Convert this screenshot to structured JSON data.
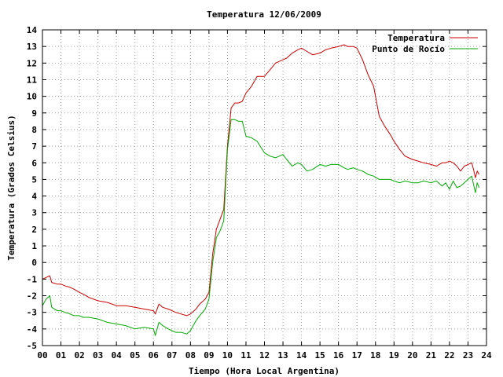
{
  "chart_data": {
    "type": "line",
    "title": "Temperatura 12/06/2009",
    "xlabel": "Tiempo (Hora Local Argentina)",
    "ylabel": "Temperatura (Grados Celsius)",
    "xlim": [
      0,
      24
    ],
    "ylim": [
      -5,
      14
    ],
    "x_ticks": [
      0,
      1,
      2,
      3,
      4,
      5,
      6,
      7,
      8,
      9,
      10,
      11,
      12,
      13,
      14,
      15,
      16,
      17,
      18,
      19,
      20,
      21,
      22,
      23,
      24
    ],
    "x_tick_labels": [
      "00",
      "01",
      "02",
      "03",
      "04",
      "05",
      "06",
      "07",
      "08",
      "09",
      "10",
      "11",
      "12",
      "13",
      "14",
      "15",
      "16",
      "17",
      "18",
      "19",
      "20",
      "21",
      "22",
      "23",
      "24"
    ],
    "y_ticks": [
      -5,
      -4,
      -3,
      -2,
      -1,
      0,
      1,
      2,
      3,
      4,
      5,
      6,
      7,
      8,
      9,
      10,
      11,
      12,
      13,
      14
    ],
    "grid": true,
    "legend_position": "top-right",
    "series": [
      {
        "name": "Temperatura",
        "color": "#cc0000",
        "x": [
          0.0,
          0.2,
          0.4,
          0.5,
          0.8,
          1.0,
          1.2,
          1.5,
          1.7,
          2.0,
          2.2,
          2.5,
          3.0,
          3.5,
          4.0,
          4.5,
          5.0,
          5.5,
          6.0,
          6.1,
          6.3,
          6.5,
          6.8,
          7.0,
          7.2,
          7.5,
          7.8,
          8.0,
          8.3,
          8.5,
          8.8,
          9.0,
          9.2,
          9.4,
          9.6,
          9.8,
          10.0,
          10.2,
          10.4,
          10.6,
          10.8,
          11.0,
          11.3,
          11.6,
          12.0,
          12.3,
          12.6,
          13.0,
          13.2,
          13.5,
          13.8,
          14.0,
          14.3,
          14.6,
          15.0,
          15.3,
          15.6,
          16.0,
          16.3,
          16.5,
          16.8,
          17.0,
          17.3,
          17.6,
          17.9,
          18.2,
          18.5,
          18.8,
          19.0,
          19.3,
          19.6,
          20.0,
          20.3,
          20.6,
          21.0,
          21.3,
          21.6,
          21.8,
          22.0,
          22.2,
          22.4,
          22.6,
          22.8,
          23.0,
          23.2,
          23.3,
          23.4,
          23.5,
          23.6
        ],
        "values": [
          -1.0,
          -0.9,
          -0.8,
          -1.2,
          -1.3,
          -1.3,
          -1.4,
          -1.5,
          -1.6,
          -1.8,
          -1.9,
          -2.1,
          -2.3,
          -2.4,
          -2.6,
          -2.6,
          -2.7,
          -2.8,
          -2.9,
          -3.1,
          -2.5,
          -2.7,
          -2.8,
          -2.9,
          -3.0,
          -3.1,
          -3.2,
          -3.1,
          -2.8,
          -2.5,
          -2.2,
          -1.8,
          0.5,
          2.0,
          2.6,
          3.2,
          7.0,
          9.3,
          9.6,
          9.6,
          9.7,
          10.2,
          10.6,
          11.2,
          11.2,
          11.6,
          12.0,
          12.2,
          12.3,
          12.6,
          12.8,
          12.9,
          12.7,
          12.5,
          12.6,
          12.8,
          12.9,
          13.0,
          13.1,
          13.0,
          13.0,
          12.9,
          12.2,
          11.3,
          10.6,
          8.8,
          8.2,
          7.7,
          7.3,
          6.8,
          6.4,
          6.2,
          6.1,
          6.0,
          5.9,
          5.8,
          6.0,
          6.0,
          6.1,
          6.0,
          5.8,
          5.5,
          5.8,
          5.9,
          6.0,
          5.6,
          5.1,
          5.5,
          5.3
        ]
      },
      {
        "name": "Punto de Rocío",
        "color": "#00aa00",
        "x": [
          0.0,
          0.2,
          0.4,
          0.5,
          0.8,
          1.0,
          1.2,
          1.5,
          1.7,
          2.0,
          2.2,
          2.5,
          3.0,
          3.5,
          4.0,
          4.5,
          5.0,
          5.5,
          6.0,
          6.1,
          6.3,
          6.5,
          6.8,
          7.0,
          7.2,
          7.5,
          7.8,
          8.0,
          8.3,
          8.5,
          8.8,
          9.0,
          9.2,
          9.4,
          9.6,
          9.8,
          10.0,
          10.2,
          10.4,
          10.6,
          10.8,
          11.0,
          11.3,
          11.6,
          12.0,
          12.3,
          12.6,
          13.0,
          13.2,
          13.5,
          13.8,
          14.0,
          14.3,
          14.6,
          15.0,
          15.3,
          15.6,
          16.0,
          16.3,
          16.5,
          16.8,
          17.0,
          17.3,
          17.6,
          17.9,
          18.2,
          18.5,
          18.8,
          19.0,
          19.3,
          19.6,
          20.0,
          20.3,
          20.6,
          21.0,
          21.3,
          21.6,
          21.8,
          22.0,
          22.2,
          22.4,
          22.6,
          22.8,
          23.0,
          23.2,
          23.3,
          23.4,
          23.5,
          23.6
        ],
        "values": [
          -2.6,
          -2.2,
          -2.0,
          -2.7,
          -2.9,
          -2.9,
          -3.0,
          -3.1,
          -3.2,
          -3.2,
          -3.3,
          -3.3,
          -3.4,
          -3.6,
          -3.7,
          -3.8,
          -4.0,
          -3.9,
          -4.0,
          -4.4,
          -3.6,
          -3.8,
          -4.0,
          -4.1,
          -4.2,
          -4.2,
          -4.3,
          -4.1,
          -3.5,
          -3.2,
          -2.8,
          -2.2,
          0.0,
          1.5,
          1.9,
          2.5,
          6.8,
          8.6,
          8.6,
          8.5,
          8.5,
          7.6,
          7.5,
          7.3,
          6.6,
          6.4,
          6.3,
          6.5,
          6.2,
          5.8,
          6.0,
          5.9,
          5.5,
          5.6,
          5.9,
          5.8,
          5.9,
          5.9,
          5.7,
          5.6,
          5.7,
          5.6,
          5.5,
          5.3,
          5.2,
          5.0,
          5.0,
          5.0,
          4.9,
          4.8,
          4.9,
          4.8,
          4.8,
          4.9,
          4.8,
          4.9,
          4.6,
          4.8,
          4.4,
          4.9,
          4.5,
          4.6,
          4.8,
          5.0,
          5.2,
          4.7,
          4.2,
          4.8,
          4.5
        ]
      }
    ]
  }
}
